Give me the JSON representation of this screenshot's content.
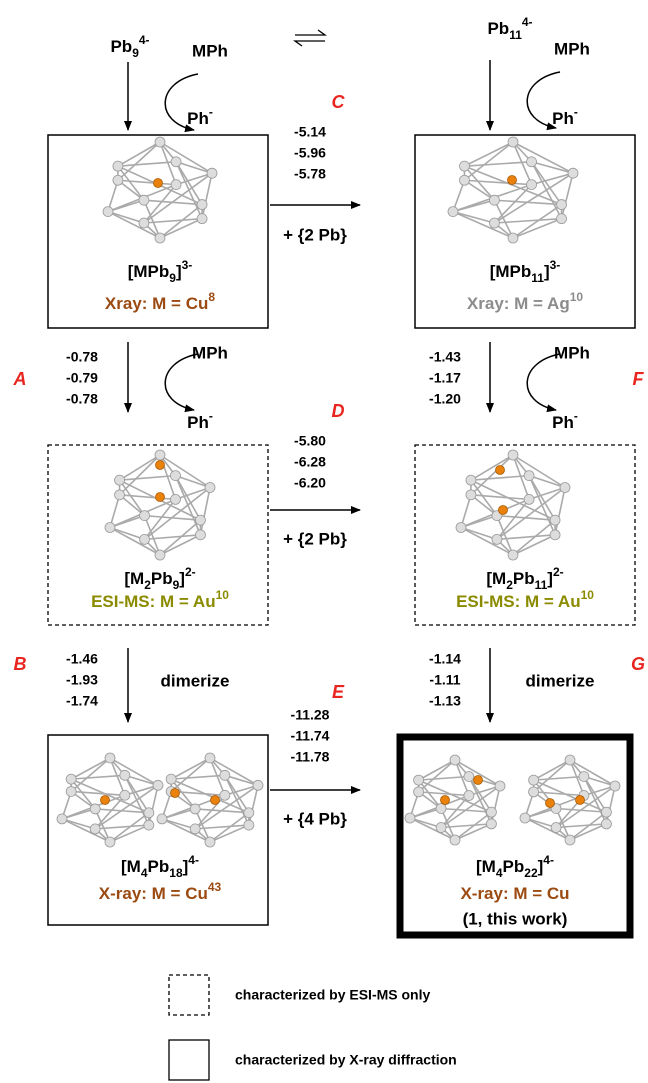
{
  "top": {
    "left": {
      "species": [
        {
          "text": "Pb"
        },
        {
          "sub": "9"
        },
        {
          "sup": "4-"
        }
      ],
      "reagent": "MPh",
      "byproduct": [
        {
          "text": "Ph"
        },
        {
          "sup": "-"
        }
      ]
    },
    "right": {
      "species": [
        {
          "text": "Pb"
        },
        {
          "sub": "11"
        },
        {
          "sup": "4-"
        }
      ],
      "reagent": "MPh",
      "byproduct": [
        {
          "text": "Ph"
        },
        {
          "sup": "-"
        }
      ]
    }
  },
  "steps": [
    {
      "label": "C",
      "energies": [
        "-5.14",
        "-5.96",
        "-5.78"
      ],
      "addend": "+ {2 Pb}"
    },
    {
      "label": "D",
      "energies": [
        "-5.80",
        "-6.28",
        "-6.20"
      ],
      "addend": "+ {2 Pb}"
    },
    {
      "label": "E",
      "energies": [
        "-11.28",
        "-11.74",
        "-11.78"
      ],
      "addend": "+ {4 Pb}"
    },
    {
      "label": "A",
      "energies": [
        "-0.78",
        "-0.79",
        "-0.78"
      ],
      "reagent": "MPh",
      "byproduct": [
        {
          "text": "Ph"
        },
        {
          "sup": "-"
        }
      ]
    },
    {
      "label": "F",
      "energies": [
        "-1.43",
        "-1.17",
        "-1.20"
      ],
      "reagent": "MPh",
      "byproduct": [
        {
          "text": "Ph"
        },
        {
          "sup": "-"
        }
      ]
    },
    {
      "label": "B",
      "energies": [
        "-1.46",
        "-1.93",
        "-1.74"
      ],
      "action": "dimerize"
    },
    {
      "label": "G",
      "energies": [
        "-1.14",
        "-1.11",
        "-1.13"
      ],
      "action": "dimerize"
    }
  ],
  "nodes": [
    {
      "formula": [
        {
          "text": "[MPb"
        },
        {
          "sub": "9"
        },
        {
          "text": "]"
        },
        {
          "sup": "3-"
        }
      ],
      "method": [
        {
          "text": "Xray: M = Cu"
        },
        {
          "sup": "8"
        }
      ]
    },
    {
      "formula": [
        {
          "text": "[MPb"
        },
        {
          "sub": "11"
        },
        {
          "text": "]"
        },
        {
          "sup": "3-"
        }
      ],
      "method": [
        {
          "text": "Xray: M = Ag"
        },
        {
          "sup": "10"
        }
      ]
    },
    {
      "formula": [
        {
          "text": "[M"
        },
        {
          "sub": "2"
        },
        {
          "text": "Pb"
        },
        {
          "sub": "9"
        },
        {
          "text": "]"
        },
        {
          "sup": "2-"
        }
      ],
      "method": [
        {
          "text": "ESI-MS: M = Au"
        },
        {
          "sup": "10"
        }
      ]
    },
    {
      "formula": [
        {
          "text": "[M"
        },
        {
          "sub": "2"
        },
        {
          "text": "Pb"
        },
        {
          "sub": "11"
        },
        {
          "text": "]"
        },
        {
          "sup": "2-"
        }
      ],
      "method": [
        {
          "text": "ESI-MS: M = Au"
        },
        {
          "sup": "10"
        }
      ]
    },
    {
      "formula": [
        {
          "text": "[M"
        },
        {
          "sub": "4"
        },
        {
          "text": "Pb"
        },
        {
          "sub": "18"
        },
        {
          "text": "]"
        },
        {
          "sup": "4-"
        }
      ],
      "method": [
        {
          "text": "X-ray: M = Cu"
        },
        {
          "sup": "43"
        }
      ]
    },
    {
      "formula": [
        {
          "text": "[M"
        },
        {
          "sub": "4"
        },
        {
          "text": "Pb"
        },
        {
          "sub": "22"
        },
        {
          "text": "]"
        },
        {
          "sup": "4-"
        }
      ],
      "method": [
        {
          "text": "X-ray: M = Cu"
        }
      ],
      "note": "(1, this work)"
    }
  ],
  "legend": {
    "dashed": "characterized by ESI-MS only",
    "solid": "characterized by X-ray diffraction"
  }
}
